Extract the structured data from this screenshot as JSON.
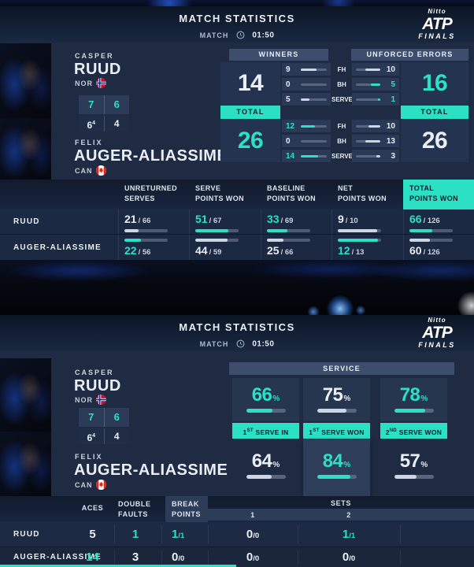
{
  "colors": {
    "teal": "#2ce0c4"
  },
  "header": {
    "title": "MATCH STATISTICS",
    "match_label": "MATCH",
    "time": "01:50",
    "logo_nitto": "Nitto",
    "logo_atp": "ATP",
    "logo_finals": "FINALS"
  },
  "players": {
    "p1": {
      "first": "CASPER",
      "last": "RUUD",
      "country": "NOR"
    },
    "p2": {
      "first": "FELIX",
      "last": "AUGER-ALIASSIME",
      "country": "CAN"
    }
  },
  "score": {
    "set1": {
      "p1": "7",
      "p2": "6"
    },
    "set2": {
      "p1": "6",
      "p1_sup": "4",
      "p2": "4"
    }
  },
  "winners_errors": {
    "winners_title": "WINNERS",
    "errors_title": "UNFORCED ERRORS",
    "total_label": "TOTAL",
    "row_labels": [
      "FH",
      "BH",
      "SERVE"
    ],
    "winners": {
      "p1_total": {
        "v": "14",
        "variant": "white"
      },
      "p2_total": {
        "v": "26",
        "variant": "teal"
      },
      "p1": [
        {
          "v": "9",
          "fill": "62%",
          "variant": "white"
        },
        {
          "v": "0",
          "fill": "0%",
          "variant": "white"
        },
        {
          "v": "5",
          "fill": "34%",
          "variant": "white"
        }
      ],
      "p2": [
        {
          "v": "12",
          "fill": "56%",
          "variant": "teal"
        },
        {
          "v": "0",
          "fill": "0%",
          "variant": "white"
        },
        {
          "v": "14",
          "fill": "66%",
          "variant": "teal"
        }
      ]
    },
    "errors": {
      "p1_total": {
        "v": "16",
        "variant": "teal"
      },
      "p2_total": {
        "v": "26",
        "variant": "white"
      },
      "p1": [
        {
          "v": "10",
          "fill": "60%",
          "variant": "white"
        },
        {
          "v": "5",
          "fill": "38%",
          "variant": "teal"
        },
        {
          "v": "1",
          "fill": "10%",
          "variant": "teal"
        }
      ],
      "p2": [
        {
          "v": "10",
          "fill": "50%",
          "variant": "white"
        },
        {
          "v": "13",
          "fill": "62%",
          "variant": "white"
        },
        {
          "v": "3",
          "fill": "16%",
          "variant": "white"
        }
      ]
    }
  },
  "stats_table": {
    "headers": [
      [
        "UNRETURNED",
        "SERVES"
      ],
      [
        "SERVE",
        "POINTS WON"
      ],
      [
        "BASELINE",
        "POINTS WON"
      ],
      [
        "NET",
        "POINTS WON"
      ],
      [
        "TOTAL",
        "POINTS WON"
      ]
    ],
    "rows": [
      {
        "name": "RUUD",
        "cells": [
          {
            "num": "21",
            "den": "/ 66",
            "fill": "32%",
            "variant": "white"
          },
          {
            "num": "51",
            "den": "/ 67",
            "fill": "76%",
            "variant": "teal"
          },
          {
            "num": "33",
            "den": "/ 69",
            "fill": "48%",
            "variant": "teal"
          },
          {
            "num": "9",
            "den": "/ 10",
            "fill": "90%",
            "variant": "white"
          },
          {
            "num": "66",
            "den": "/ 126",
            "fill": "52%",
            "variant": "teal"
          }
        ]
      },
      {
        "name": "AUGER-ALIASSIME",
        "cells": [
          {
            "num": "22",
            "den": "/ 56",
            "fill": "39%",
            "variant": "teal"
          },
          {
            "num": "44",
            "den": "/ 59",
            "fill": "75%",
            "variant": "white"
          },
          {
            "num": "25",
            "den": "/ 66",
            "fill": "38%",
            "variant": "white"
          },
          {
            "num": "12",
            "den": "/ 13",
            "fill": "92%",
            "variant": "teal"
          },
          {
            "num": "60",
            "den": "/ 126",
            "fill": "48%",
            "variant": "white"
          }
        ]
      }
    ]
  },
  "service": {
    "title": "SERVICE",
    "pct": "%",
    "banners": [
      {
        "pre": "1",
        "sup": "ST",
        "post": " SERVE IN"
      },
      {
        "pre": "1",
        "sup": "ST",
        "post": " SERVE WON"
      },
      {
        "pre": "2",
        "sup": "ND",
        "post": " SERVE WON"
      }
    ],
    "p1": [
      {
        "v": "66",
        "fill": "66%",
        "variant": "teal"
      },
      {
        "v": "75",
        "fill": "75%",
        "variant": "white"
      },
      {
        "v": "78",
        "fill": "78%",
        "variant": "teal"
      }
    ],
    "p2": [
      {
        "v": "64",
        "fill": "64%",
        "variant": "white"
      },
      {
        "v": "84",
        "fill": "84%",
        "variant": "teal"
      },
      {
        "v": "57",
        "fill": "57%",
        "variant": "white"
      }
    ]
  },
  "bottom_table": {
    "aces_label": "ACES",
    "df_line1": "DOUBLE",
    "df_line2": "FAULTS",
    "bp_line1": "BREAK",
    "bp_line2": "POINTS",
    "sets_label": "SETS",
    "set_cols": [
      "1",
      "2"
    ],
    "rows": [
      {
        "name": "RUUD",
        "aces": {
          "v": "5",
          "variant": "white"
        },
        "df": {
          "v": "1",
          "variant": "teal"
        },
        "bp": {
          "num": "1",
          "den": "/1",
          "variant": "teal"
        },
        "set1": {
          "num": "0",
          "den": "/0",
          "variant": "white"
        },
        "set2": {
          "num": "1",
          "den": "/1",
          "variant": "teal"
        }
      },
      {
        "name": "AUGER-ALIASSIME",
        "aces": {
          "v": "14",
          "variant": "teal"
        },
        "df": {
          "v": "3",
          "variant": "white"
        },
        "bp": {
          "num": "0",
          "den": "/0",
          "variant": "white"
        },
        "set1": {
          "num": "0",
          "den": "/0",
          "variant": "white"
        },
        "set2": {
          "num": "0",
          "den": "/0",
          "variant": "white"
        }
      }
    ]
  }
}
